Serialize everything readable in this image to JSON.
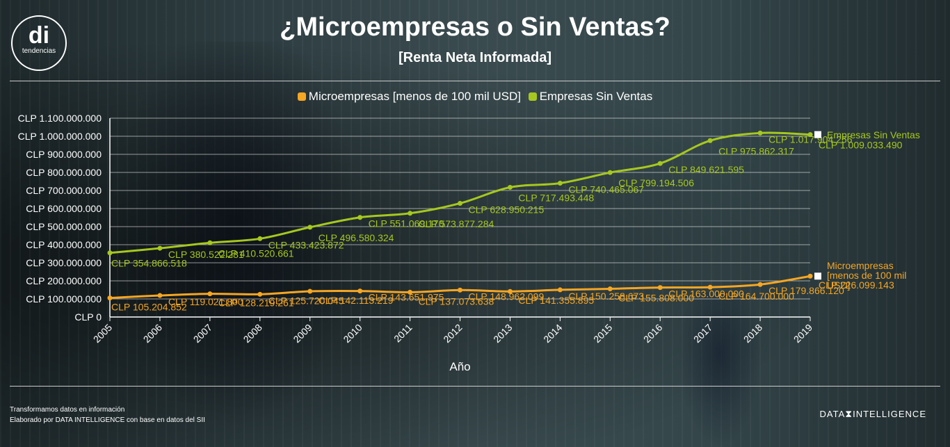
{
  "header": {
    "logo_main": "di",
    "logo_sub": "tendencias",
    "title": "¿Microempresas o Sin Ventas?",
    "subtitle": "[Renta Neta Informada]"
  },
  "footer": {
    "line1": "Transformamos datos en información",
    "line2": "Elaborado por DATA INTELLIGENCE con base en datos del SII",
    "brand_left": "DATA",
    "brand_mid": "⧗",
    "brand_right": "INTELLIGENCE"
  },
  "chart_data": {
    "type": "line",
    "xlabel": "Año",
    "ylabel": "",
    "ylim": [
      0,
      1100000000
    ],
    "y_ticks": [
      "CLP 0",
      "CLP 100.000.000",
      "CLP 200.000.000",
      "CLP 300.000.000",
      "CLP 400.000.000",
      "CLP 500.000.000",
      "CLP 600.000.000",
      "CLP 700.000.000",
      "CLP 800.000.000",
      "CLP 900.000.000",
      "CLP 1.000.000.000",
      "CLP 1.100.000.000"
    ],
    "y_tick_values": [
      0,
      100000000,
      200000000,
      300000000,
      400000000,
      500000000,
      600000000,
      700000000,
      800000000,
      900000000,
      1000000000,
      1100000000
    ],
    "grid": true,
    "legend_position": "top",
    "categories": [
      "2005",
      "2006",
      "2007",
      "2008",
      "2009",
      "2010",
      "2011",
      "2012",
      "2013",
      "2014",
      "2015",
      "2016",
      "2017",
      "2018",
      "2019"
    ],
    "series": [
      {
        "name": "Microempresas [menos de 100 mil USD]",
        "end_label": [
          "Microempresas",
          "[menos de 100 mil",
          "USD]"
        ],
        "color": "#f5a623",
        "values": [
          105204852,
          119021800,
          128219261,
          125720045,
          142113219,
          143651975,
          137073638,
          148962099,
          141355895,
          150258673,
          155808000,
          163000000,
          164700000,
          179866120,
          226099143
        ],
        "labels": [
          "CLP 105.204.852",
          "CLP 119.021.800",
          "CLP 128.219.261",
          "CLP 125.720.045",
          "CLP 142.113.219",
          "CLP 143.651.975",
          "CLP 137.073.638",
          "CLP 148.962.099",
          "CLP 141.355.895",
          "CLP 150.258.673",
          "CLP 155.808.000",
          "CLP 163.000.000",
          "CLP 164.700.000",
          "CLP 179.866.120",
          "CLP 226.099.143"
        ]
      },
      {
        "name": "Empresas Sin Ventas",
        "end_label": [
          "Empresas Sin Ventas"
        ],
        "color": "#a6c81e",
        "values": [
          354866518,
          380522281,
          410520661,
          433423872,
          496580324,
          551069170,
          573877284,
          628950215,
          717493448,
          740465067,
          799194506,
          849621595,
          975862317,
          1017904256,
          1009033490
        ],
        "labels": [
          "CLP 354.866.518",
          "CLP 380.522.281",
          "CLP 410.520.661",
          "CLP 433.423.872",
          "CLP 496.580.324",
          "CLP 551.069.170",
          "CLP 573.877.284",
          "CLP 628.950.215",
          "CLP 717.493.448",
          "CLP 740.465.067",
          "CLP 799.194.506",
          "CLP 849.621.595",
          "CLP 975.862.317",
          "CLP 1.017.904.256",
          "CLP 1.009.033.490"
        ]
      }
    ]
  }
}
